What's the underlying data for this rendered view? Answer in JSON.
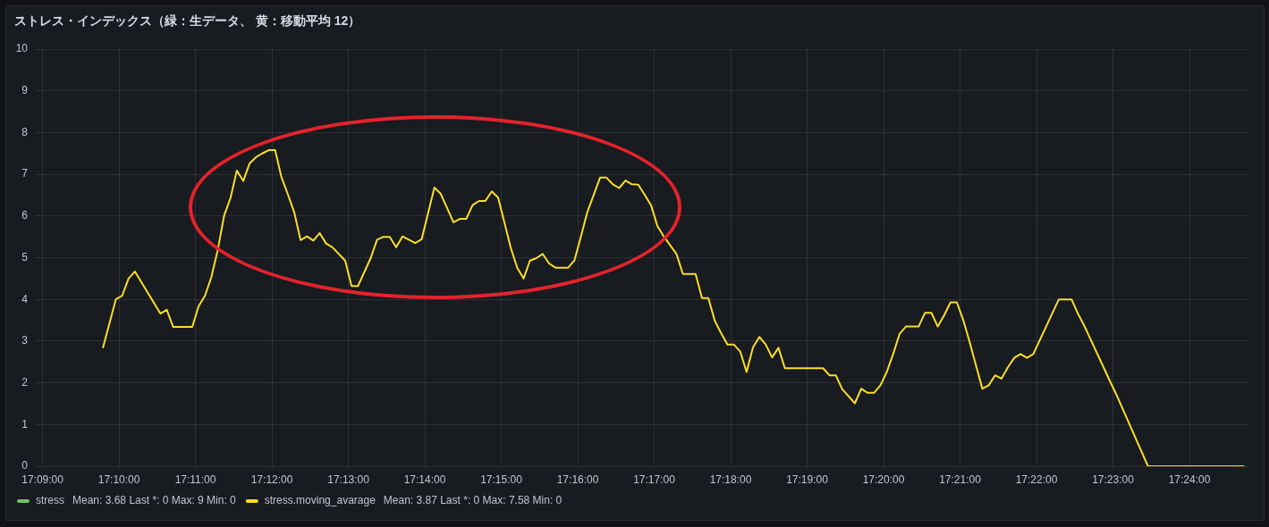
{
  "chart_data": {
    "type": "line",
    "title": "ストレス・インデックス（緑：生データ、 黄：移動平均 12）",
    "x": [
      17.16319,
      17.16597,
      17.16736,
      17.16875,
      17.17014,
      17.17569,
      17.17708,
      17.17847,
      17.18264,
      17.18403,
      17.18542,
      17.18681,
      17.18819,
      17.18958,
      17.19097,
      17.19236,
      17.19375,
      17.19514,
      17.19653,
      17.19792,
      17.19931,
      17.20069,
      17.20208,
      17.20347,
      17.20486,
      17.20625,
      17.20764,
      17.20903,
      17.21042,
      17.21181,
      17.21319,
      17.21597,
      17.21736,
      17.21875,
      17.22153,
      17.22292,
      17.22431,
      17.22569,
      17.22708,
      17.22847,
      17.23125,
      17.23264,
      17.23542,
      17.23681,
      17.23958,
      17.24097,
      17.24236,
      17.24375,
      17.24514,
      17.24653,
      17.24792,
      17.24931,
      17.25069,
      17.25208,
      17.25347,
      17.25486,
      17.25625,
      17.25764,
      17.25903,
      17.26042,
      17.26181,
      17.26458,
      17.26597,
      17.26736,
      17.26875,
      17.27153,
      17.27292,
      17.27431,
      17.27569,
      17.27708,
      17.27847,
      17.27986,
      17.28125,
      17.28264,
      17.28403,
      17.28542,
      17.28819,
      17.28958,
      17.29236,
      17.29375,
      17.29514,
      17.29653,
      17.29792,
      17.29931,
      17.30069,
      17.30208,
      17.30347,
      17.30486,
      17.30625,
      17.30764,
      17.30903,
      17.31042,
      17.31181,
      17.32014,
      17.32153,
      17.32292,
      17.32431,
      17.32708,
      17.32847,
      17.32986,
      17.33125,
      17.33264,
      17.33403,
      17.33542,
      17.33681,
      17.33819,
      17.34097,
      17.34236,
      17.34375,
      17.34514,
      17.34653,
      17.34792,
      17.34931,
      17.35069,
      17.35208,
      17.35347,
      17.35486,
      17.35625,
      17.35764,
      17.35903,
      17.36042,
      17.36181,
      17.36319,
      17.36458,
      17.36597,
      17.37153,
      17.37431,
      17.37569,
      17.37708,
      17.38264,
      17.38403,
      17.39097,
      17.41181
    ],
    "series": [
      {
        "name": "stress",
        "color": "#73bf69",
        "values": [
          null,
          null,
          null,
          null,
          null,
          null,
          null,
          null,
          null,
          null,
          null,
          null,
          null,
          null,
          null,
          null,
          null,
          null,
          null,
          null,
          null,
          null,
          null,
          null,
          null,
          null,
          null,
          null,
          null,
          null,
          null,
          null,
          null,
          null,
          null,
          null,
          null,
          null,
          null,
          null,
          null,
          null,
          null,
          null,
          null,
          null,
          null,
          null,
          null,
          null,
          null,
          null,
          null,
          null,
          null,
          null,
          null,
          null,
          null,
          null,
          null,
          null,
          null,
          null,
          null,
          null,
          null,
          null,
          null,
          null,
          null,
          null,
          null,
          null,
          null,
          null,
          null,
          null,
          null,
          null,
          null,
          null,
          null,
          null,
          null,
          null,
          null,
          null,
          null,
          null,
          null,
          null,
          null,
          null,
          null,
          null,
          null,
          null,
          null,
          null,
          null,
          null,
          null,
          null,
          null,
          null,
          null,
          null,
          null,
          null,
          null,
          null,
          null,
          null,
          null,
          null,
          null,
          null,
          null,
          null,
          null,
          null,
          null,
          null,
          null,
          null,
          null,
          null,
          null,
          null,
          null,
          null,
          null
        ]
      },
      {
        "name": "stress.moving_avarage",
        "color": "#fade2a",
        "values": [
          2.85,
          4.0,
          4.09,
          4.5,
          4.67,
          3.66,
          3.75,
          3.34,
          3.34,
          3.84,
          4.09,
          4.54,
          5.18,
          6.01,
          6.43,
          7.09,
          6.84,
          7.26,
          7.41,
          7.5,
          7.58,
          7.58,
          6.93,
          6.52,
          6.09,
          5.42,
          5.51,
          5.41,
          5.59,
          5.34,
          5.25,
          4.93,
          4.32,
          4.32,
          4.99,
          5.43,
          5.5,
          5.5,
          5.25,
          5.51,
          5.35,
          5.44,
          6.68,
          6.53,
          5.85,
          5.93,
          5.93,
          6.26,
          6.36,
          6.36,
          6.59,
          6.44,
          5.84,
          5.23,
          4.76,
          4.5,
          4.93,
          4.99,
          5.09,
          4.86,
          4.76,
          4.76,
          4.94,
          5.51,
          6.09,
          6.92,
          6.92,
          6.76,
          6.67,
          6.85,
          6.76,
          6.75,
          6.51,
          6.26,
          5.76,
          5.51,
          5.09,
          4.61,
          4.61,
          4.03,
          4.03,
          3.49,
          3.19,
          2.92,
          2.92,
          2.75,
          2.26,
          2.85,
          3.1,
          2.92,
          2.61,
          2.84,
          2.35,
          2.35,
          2.18,
          2.18,
          1.85,
          1.51,
          1.86,
          1.76,
          1.76,
          1.94,
          2.26,
          2.69,
          3.17,
          3.35,
          3.35,
          3.68,
          3.68,
          3.35,
          3.62,
          3.93,
          3.93,
          3.51,
          2.98,
          2.42,
          1.86,
          1.94,
          2.18,
          2.1,
          2.37,
          2.6,
          2.69,
          2.6,
          2.69,
          4.0,
          4.0,
          3.66,
          3.37,
          2.05,
          1.73,
          0,
          0
        ]
      }
    ],
    "xlim": [
      17.14833,
      17.41306
    ],
    "xticks": [
      {
        "value": 17.15,
        "label": "17:09:00"
      },
      {
        "value": 17.16667,
        "label": "17:10:00"
      },
      {
        "value": 17.18333,
        "label": "17:11:00"
      },
      {
        "value": 17.2,
        "label": "17:12:00"
      },
      {
        "value": 17.21667,
        "label": "17:13:00"
      },
      {
        "value": 17.23333,
        "label": "17:14:00"
      },
      {
        "value": 17.25,
        "label": "17:15:00"
      },
      {
        "value": 17.26667,
        "label": "17:16:00"
      },
      {
        "value": 17.28333,
        "label": "17:17:00"
      },
      {
        "value": 17.3,
        "label": "17:18:00"
      },
      {
        "value": 17.31667,
        "label": "17:19:00"
      },
      {
        "value": 17.33333,
        "label": "17:20:00"
      },
      {
        "value": 17.35,
        "label": "17:21:00"
      },
      {
        "value": 17.36667,
        "label": "17:22:00"
      },
      {
        "value": 17.38333,
        "label": "17:23:00"
      },
      {
        "value": 17.4,
        "label": "17:24:00"
      }
    ],
    "ylim": [
      0,
      10
    ],
    "yticks": [
      0,
      1,
      2,
      3,
      4,
      5,
      6,
      7,
      8,
      9,
      10
    ],
    "grid": true,
    "legend": "bottom left",
    "annotations": [
      "Mean: 3.68 Last *: 0 Max: 9 Min: 0",
      "Mean: 3.87 Last *: 0 Max: 7.58 Min: 0"
    ]
  }
}
